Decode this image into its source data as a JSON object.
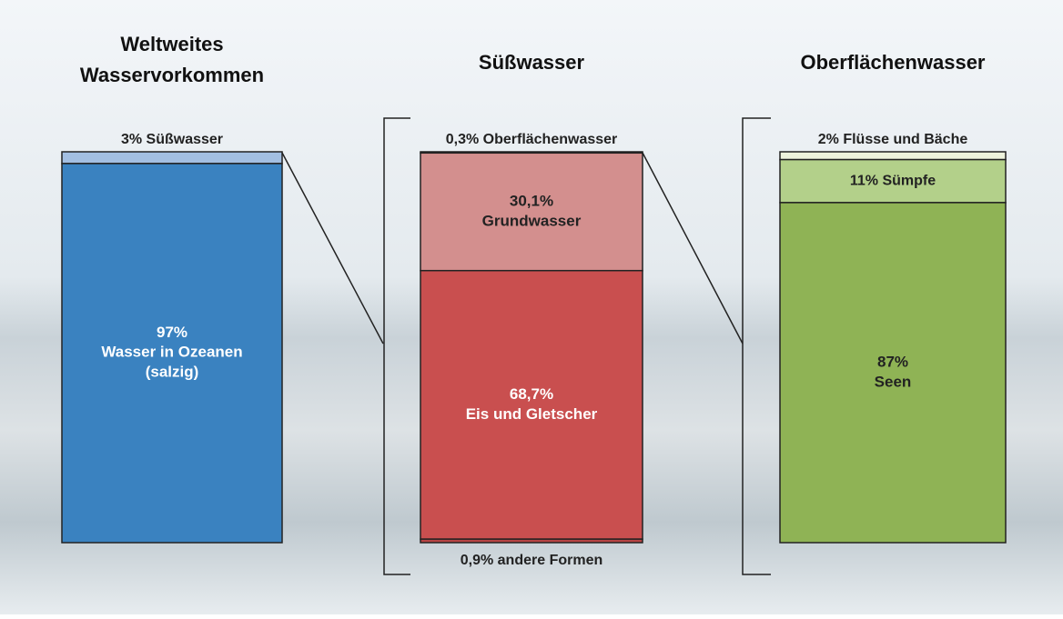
{
  "chart_data": [
    {
      "type": "stacked-bar",
      "title": "Weltweites Wasservorkommen",
      "series": [
        {
          "name": "Süßwasser",
          "color": "#a3bfe2",
          "values": [
            3
          ],
          "value_labels": [
            "3%"
          ]
        },
        {
          "name": "Wasser in Ozeanen (salzig)",
          "color": "#3a82c0",
          "values": [
            97
          ],
          "value_labels": [
            "97%"
          ]
        }
      ]
    },
    {
      "type": "stacked-bar",
      "title": "Süßwasser",
      "series": [
        {
          "name": "Oberflächenwasser",
          "color": "#eed3d2",
          "values": [
            0.3
          ],
          "value_labels": [
            "0,3%"
          ]
        },
        {
          "name": "Grundwasser",
          "color": "#d38f8e",
          "values": [
            30.1
          ],
          "value_labels": [
            "30,1%"
          ]
        },
        {
          "name": "Eis und Gletscher",
          "color": "#c94f4f",
          "values": [
            68.7
          ],
          "value_labels": [
            "68,7%"
          ]
        },
        {
          "name": "andere Formen",
          "color": "#b74444",
          "values": [
            0.9
          ],
          "value_labels": [
            "0,9%"
          ]
        }
      ]
    },
    {
      "type": "stacked-bar",
      "title": "Oberflächenwasser",
      "series": [
        {
          "name": "Flüsse und Bäche",
          "color": "#eef3dc",
          "values": [
            2
          ],
          "value_labels": [
            "2%"
          ]
        },
        {
          "name": "Sümpfe",
          "color": "#b3d08a",
          "values": [
            11
          ],
          "value_labels": [
            "11%"
          ]
        },
        {
          "name": "Seen",
          "color": "#8fb355",
          "values": [
            87
          ],
          "value_labels": [
            "87%"
          ]
        }
      ]
    }
  ]
}
